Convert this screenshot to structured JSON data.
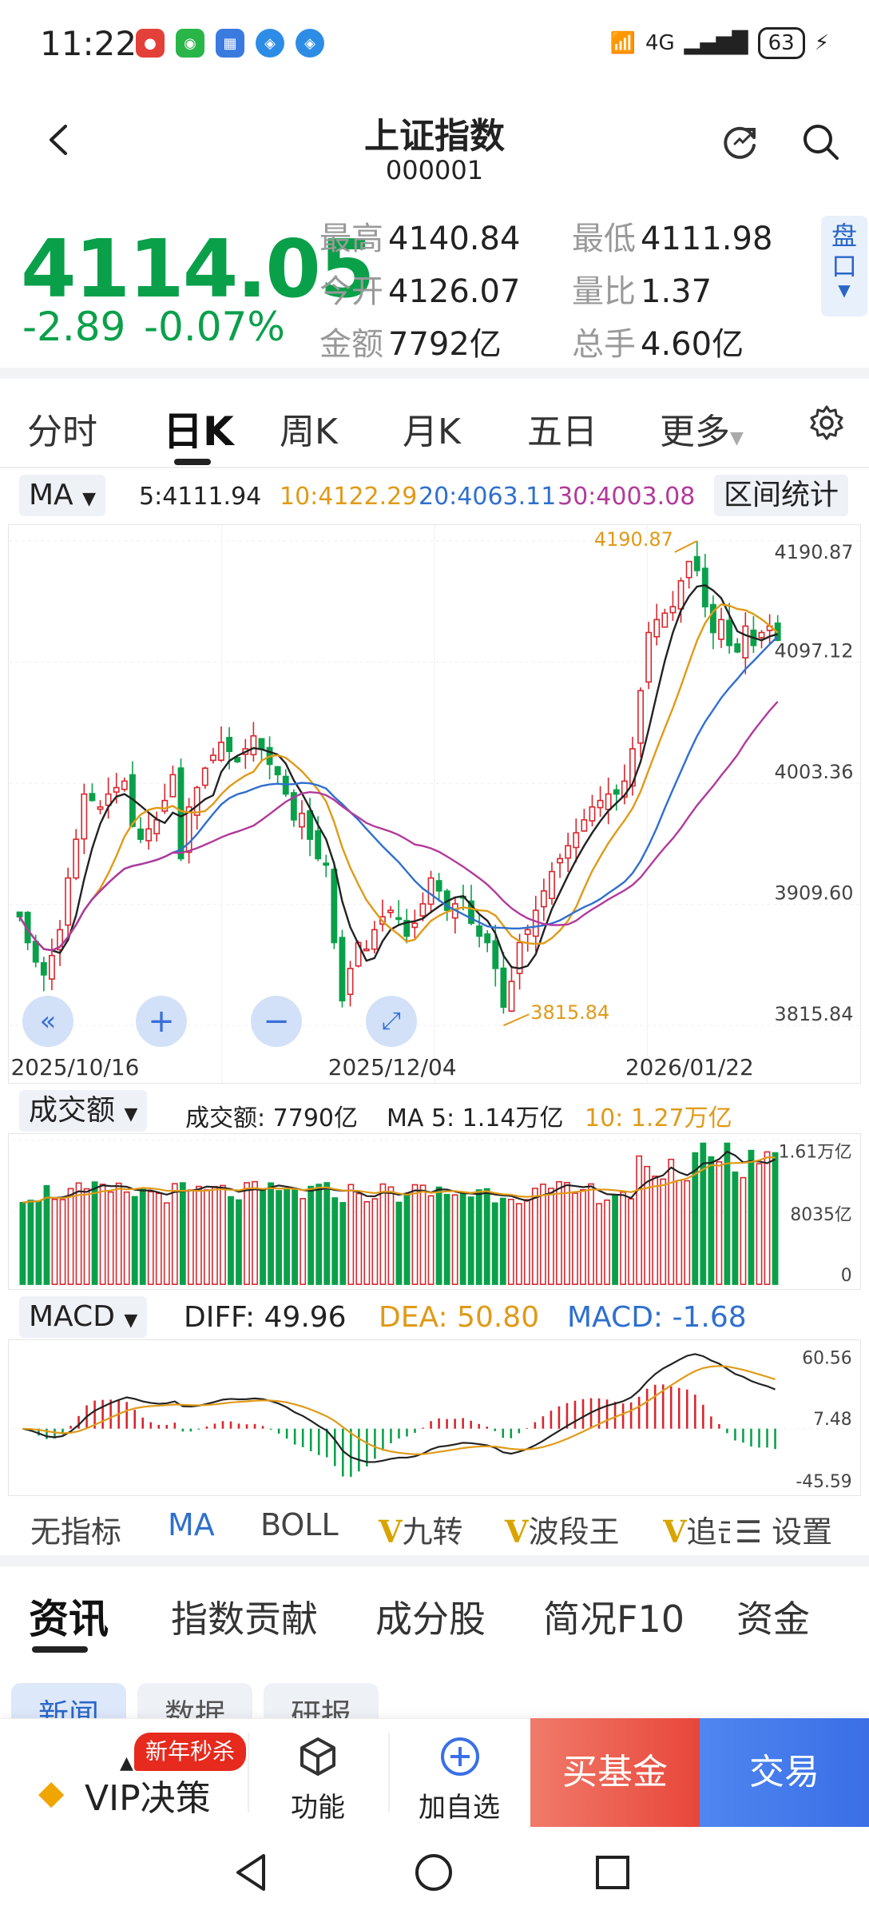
{
  "status": {
    "time": "11:22",
    "network": "4G",
    "battery": "63",
    "apps": [
      {
        "icon": "red-app-icon",
        "color": "#e4403a"
      },
      {
        "icon": "wechat-icon",
        "color": "#2ab548"
      },
      {
        "icon": "calendar-icon",
        "color": "#3b7be0"
      },
      {
        "icon": "browser-icon",
        "color": "#2d8de6"
      },
      {
        "icon": "browser2-icon",
        "color": "#2d8de6"
      }
    ]
  },
  "header": {
    "title": "上证指数",
    "code": "000001"
  },
  "quote": {
    "price": "4114.05",
    "change": "-2.89",
    "change_pct": "-0.07%",
    "stats": [
      {
        "label": "最高",
        "value": "4140.84"
      },
      {
        "label": "最低",
        "value": "4111.98"
      },
      {
        "label": "今开",
        "value": "4126.07"
      },
      {
        "label": "量比",
        "value": "1.37"
      },
      {
        "label": "金额",
        "value": "7792亿"
      },
      {
        "label": "总手",
        "value": "4.60亿"
      }
    ],
    "side_button": "盘口"
  },
  "tabs": [
    "分时",
    "日K",
    "周K",
    "月K",
    "五日",
    "更多"
  ],
  "ma_bar": {
    "selector": "MA",
    "ma5": "5:4111.94",
    "ma10": "10:4122.29",
    "ma20": "20:4063.11",
    "ma30": "30:4003.08",
    "range_stats": "区间统计"
  },
  "colors": {
    "up": "#d8262d",
    "down": "#0aa04a",
    "ma5": "#222222",
    "ma10": "#e09a18",
    "ma20": "#2f6fce",
    "ma30": "#b23a9a"
  },
  "chart_data": [
    {
      "type": "candlestick",
      "x_labels": [
        "2025/10/16",
        "2025/12/04",
        "2026/01/22"
      ],
      "y_ticks": [
        "4190.87",
        "4097.12",
        "4003.36",
        "3909.60",
        "3815.84"
      ],
      "ylim": [
        3815.84,
        4190.87
      ],
      "annotations": [
        {
          "text": "4190.87"
        },
        {
          "text": "3815.84"
        }
      ],
      "closes": [
        3900,
        3880,
        3865,
        3855,
        3870,
        3890,
        3930,
        3960,
        3995,
        3990,
        3985,
        3995,
        4000,
        4005,
        3970,
        3960,
        3968,
        3975,
        3990,
        4010,
        3945,
        3985,
        4000,
        4015,
        4025,
        4035,
        4028,
        4020,
        4030,
        4040,
        4030,
        4018,
        4010,
        3995,
        3975,
        3980,
        3960,
        3945,
        3940,
        3880,
        3835,
        3860,
        3880,
        3875,
        3890,
        3900,
        3905,
        3898,
        3885,
        3895,
        3910,
        3930,
        3920,
        3905,
        3910,
        3915,
        3895,
        3885,
        3880,
        3860,
        3830,
        3850,
        3880,
        3890,
        3905,
        3920,
        3935,
        3945,
        3955,
        3965,
        3975,
        3985,
        3990,
        3995,
        3995,
        4005,
        4030,
        4075,
        4120,
        4130,
        4135,
        4140,
        4160,
        4175,
        4168,
        4140,
        4120,
        4130,
        4110,
        4105,
        4125,
        4110,
        4120,
        4125,
        4114
      ],
      "volumes": [],
      "series": [
        {
          "name": "MA5",
          "values": []
        },
        {
          "name": "MA10",
          "values": []
        },
        {
          "name": "MA20",
          "values": []
        },
        {
          "name": "MA30",
          "values": []
        }
      ]
    },
    {
      "type": "bar",
      "y_ticks": [
        "1.61万亿",
        "8035亿",
        "0"
      ],
      "ylim": [
        0,
        16100
      ],
      "legend": {
        "selector": "成交额",
        "amount": "成交额: 7790亿",
        "ma5": "MA 5: 1.14万亿",
        "ma10": "10: 1.27万亿"
      }
    },
    {
      "type": "bar",
      "y_ticks": [
        "60.56",
        "7.48",
        "-45.59"
      ],
      "ylim": [
        -45.59,
        60.56
      ],
      "legend": {
        "selector": "MACD",
        "diff": "DIFF: 49.96",
        "dea": "DEA: 50.80",
        "macd": "MACD: -1.68"
      }
    }
  ],
  "indicators": [
    "无指标",
    "MA",
    "BOLL",
    "九转",
    "波段王",
    "追击",
    "设置"
  ],
  "news_tabs": [
    "资讯",
    "指数贡献",
    "成分股",
    "简况F10",
    "资金"
  ],
  "chips": [
    "新闻",
    "数据",
    "研报"
  ],
  "bottom": {
    "promo": "新年秒杀",
    "vip": "VIP决策",
    "func": "功能",
    "add": "加自选",
    "buy_fund": "买基金",
    "trade": "交易"
  }
}
